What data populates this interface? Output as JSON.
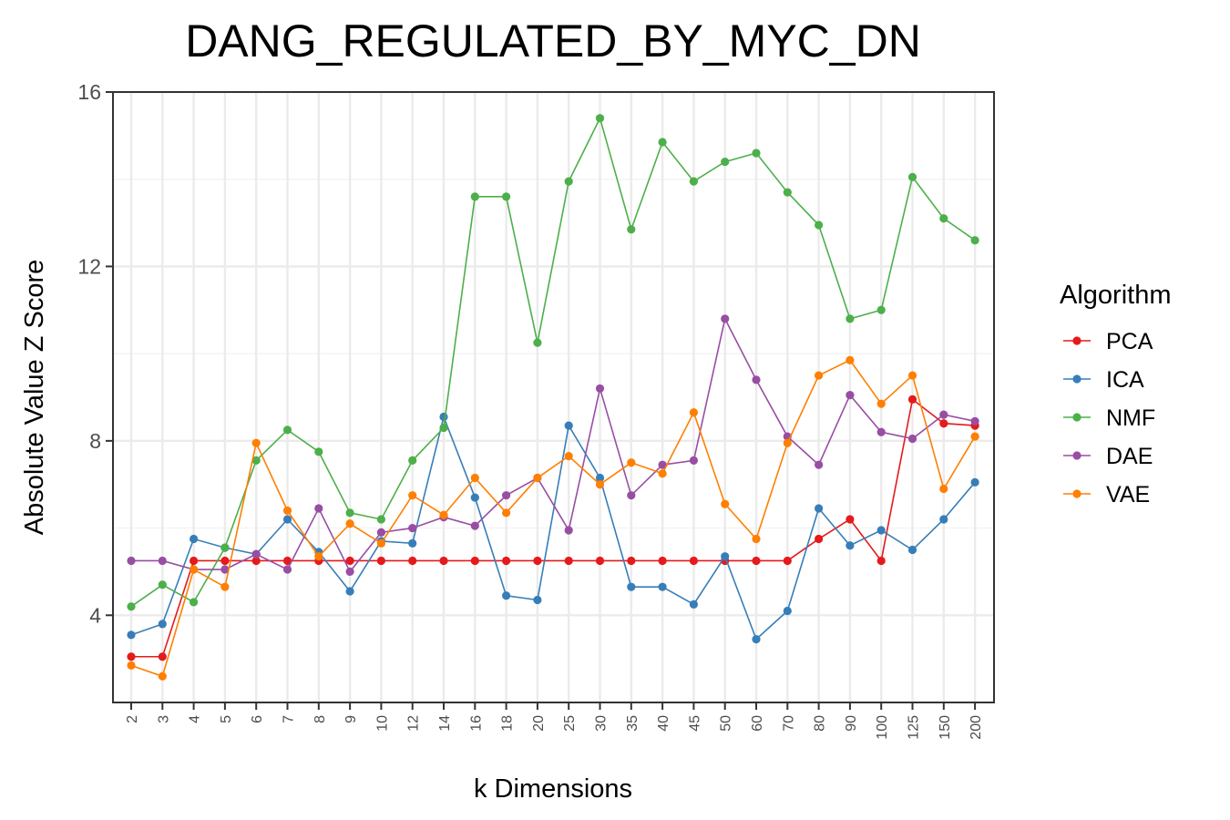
{
  "chart_data": {
    "type": "line",
    "title": "DANG_REGULATED_BY_MYC_DN",
    "xlabel": "k Dimensions",
    "ylabel": "Absolute Value Z Score",
    "categories": [
      "2",
      "3",
      "4",
      "5",
      "6",
      "7",
      "8",
      "9",
      "10",
      "12",
      "14",
      "16",
      "18",
      "20",
      "25",
      "30",
      "35",
      "40",
      "45",
      "50",
      "60",
      "70",
      "80",
      "90",
      "100",
      "125",
      "150",
      "200"
    ],
    "ylim": [
      2,
      16
    ],
    "yticks": [
      "4",
      "8",
      "12",
      "16"
    ],
    "grid": true,
    "legend": {
      "title": "Algorithm",
      "position": "right"
    },
    "series": [
      {
        "name": "PCA",
        "color": "#E41A1C",
        "values": [
          3.05,
          3.05,
          5.25,
          5.25,
          5.25,
          5.25,
          5.25,
          5.25,
          5.25,
          5.25,
          5.25,
          5.25,
          5.25,
          5.25,
          5.25,
          5.25,
          5.25,
          5.25,
          5.25,
          5.25,
          5.25,
          5.25,
          5.75,
          6.2,
          5.25,
          8.95,
          8.4,
          8.35
        ]
      },
      {
        "name": "ICA",
        "color": "#377EB8",
        "values": [
          3.55,
          3.8,
          5.75,
          5.55,
          5.4,
          6.2,
          5.45,
          4.55,
          5.7,
          5.65,
          8.55,
          6.7,
          4.45,
          4.35,
          8.35,
          7.15,
          4.65,
          4.65,
          4.25,
          5.35,
          3.45,
          4.1,
          6.45,
          5.6,
          5.95,
          5.5,
          6.2,
          7.05
        ]
      },
      {
        "name": "NMF",
        "color": "#4DAF4A",
        "values": [
          4.2,
          4.7,
          4.3,
          5.55,
          7.55,
          8.25,
          7.75,
          6.35,
          6.2,
          7.55,
          8.3,
          13.6,
          13.6,
          10.25,
          13.95,
          15.4,
          12.85,
          14.85,
          13.95,
          14.4,
          14.6,
          13.7,
          12.95,
          10.8,
          11,
          14.05,
          13.1,
          12.6
        ]
      },
      {
        "name": "DAE",
        "color": "#984EA3",
        "values": [
          5.25,
          5.25,
          5.05,
          5.05,
          5.4,
          5.05,
          6.45,
          5.0,
          5.9,
          6.0,
          6.25,
          6.05,
          6.75,
          7.15,
          5.95,
          9.2,
          6.75,
          7.45,
          7.55,
          10.8,
          9.4,
          8.1,
          7.45,
          9.05,
          8.2,
          8.05,
          8.6,
          8.45
        ]
      },
      {
        "name": "VAE",
        "color": "#FF7F00",
        "values": [
          2.85,
          2.6,
          5.05,
          4.65,
          7.95,
          6.4,
          5.35,
          6.1,
          5.65,
          6.75,
          6.3,
          7.15,
          6.35,
          7.15,
          7.65,
          7.0,
          7.5,
          7.25,
          8.65,
          6.55,
          5.75,
          7.95,
          9.5,
          9.85,
          8.85,
          9.5,
          6.9,
          8.1
        ]
      }
    ]
  }
}
